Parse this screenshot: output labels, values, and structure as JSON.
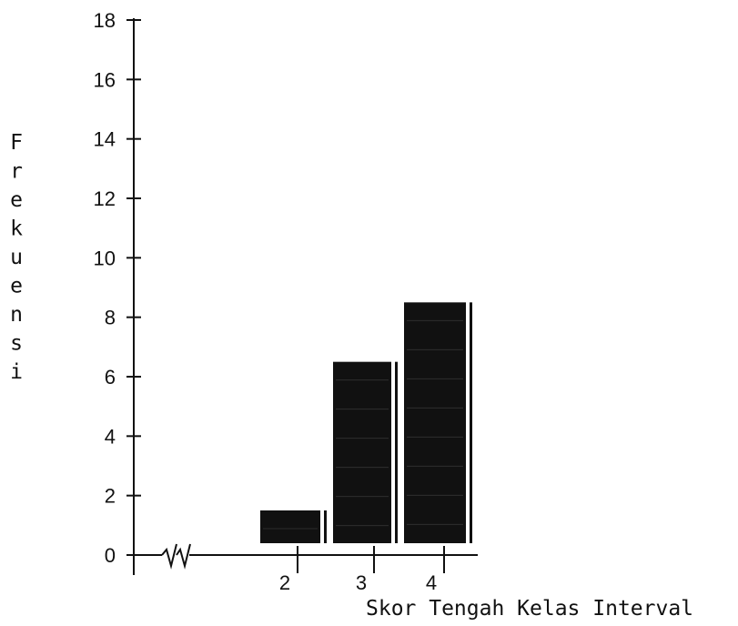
{
  "chart_data": {
    "type": "bar",
    "title": "",
    "xlabel": "Skor Tengah Kelas Interval",
    "ylabel": "Frekuensi",
    "ylabel_letters": [
      "F",
      "r",
      "e",
      "k",
      "u",
      "e",
      "n",
      "s",
      "i"
    ],
    "categories": [
      "2",
      "3",
      "4"
    ],
    "values": [
      1,
      6,
      8
    ],
    "yticks": [
      "0",
      "2",
      "4",
      "6",
      "8",
      "10",
      "12",
      "14",
      "16",
      "18"
    ],
    "ylim": [
      0,
      18
    ],
    "axis_break": true,
    "grid": false,
    "bar_color": "#111111"
  }
}
